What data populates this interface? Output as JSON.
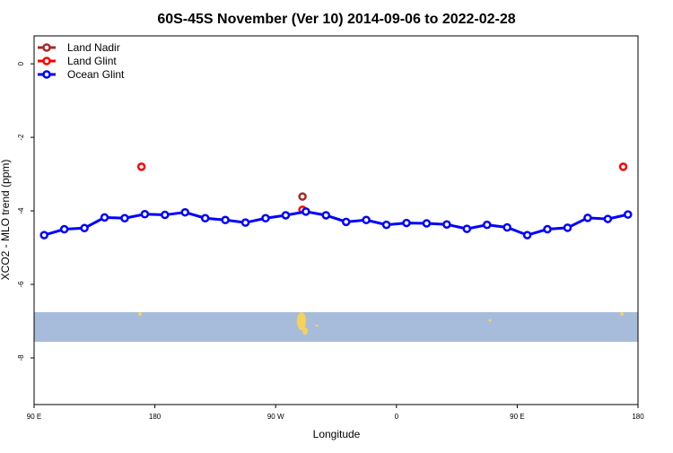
{
  "chart_data": {
    "type": "line",
    "title": "60S-45S November (Ver 10)   2014-09-06 to 2022-02-28",
    "x_label": "Longitude",
    "y_label": "XCO2 - MLO trend (ppm)",
    "xlim": [
      90,
      540
    ],
    "ylim": [
      -9.27,
      0.76
    ],
    "xticks": [
      {
        "value": 90,
        "label": "90 E"
      },
      180,
      {
        "value": 270,
        "label": "90 W"
      },
      {
        "value": 360,
        "label": "0"
      },
      {
        "value": 450,
        "label": "90 E"
      },
      {
        "value": 540,
        "label": "180"
      }
    ],
    "yticks": [
      0,
      -2,
      -4,
      -6,
      -8
    ],
    "legend": "top-left",
    "series": [
      {
        "name": "Land Nadir",
        "color": "#a52a2a",
        "x": [
          290
        ],
        "values": [
          -3.61
        ],
        "line": false
      },
      {
        "name": "Land Glint",
        "color": "#ff0000",
        "x": [
          170,
          290,
          529
        ],
        "values": [
          -2.8,
          -3.97,
          -2.8
        ],
        "line": false
      },
      {
        "name": "Ocean Glint",
        "color": "#0000ff",
        "x": [
          97.5,
          112.5,
          127.5,
          142.5,
          157.5,
          172.5,
          187.5,
          202.5,
          217.5,
          232.5,
          247.5,
          262.5,
          277.5,
          292.5,
          307.5,
          322.5,
          337.5,
          352.5,
          367.5,
          382.5,
          397.5,
          412.5,
          427.5,
          442.5,
          457.5,
          472.5,
          487.5,
          502.5,
          517.5,
          532.5
        ],
        "values": [
          -4.66,
          -4.5,
          -4.47,
          -4.18,
          -4.2,
          -4.09,
          -4.11,
          -4.04,
          -4.2,
          -4.25,
          -4.32,
          -4.2,
          -4.12,
          -4.02,
          -4.12,
          -4.3,
          -4.25,
          -4.38,
          -4.33,
          -4.34,
          -4.37,
          -4.49,
          -4.38,
          -4.45,
          -4.66,
          -4.5,
          -4.46,
          -4.19,
          -4.22,
          -4.1
        ],
        "line": true
      }
    ]
  }
}
